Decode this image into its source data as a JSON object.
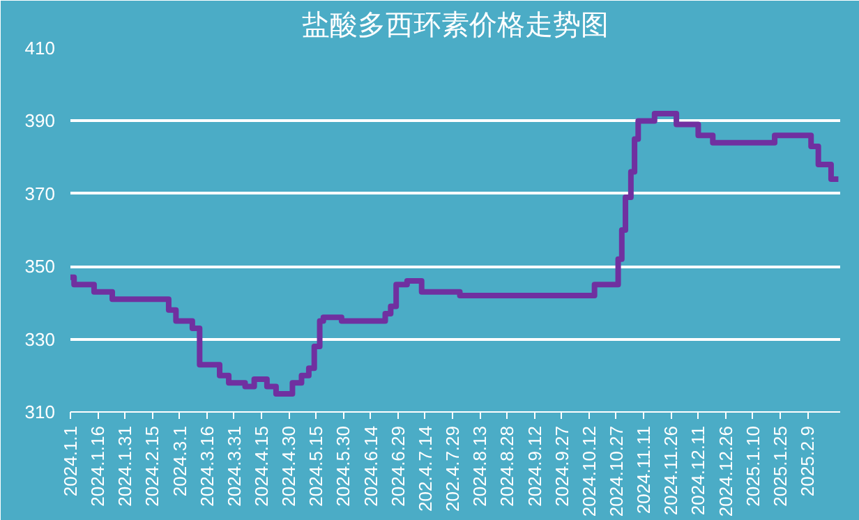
{
  "chart_data": {
    "type": "step",
    "title": "盐酸多西环素价格走势图",
    "x": [
      "2024-01-01",
      "2024-01-03",
      "2024-01-14",
      "2024-01-24",
      "2024-02-24",
      "2024-02-28",
      "2024-03-08",
      "2024-03-12",
      "2024-03-23",
      "2024-03-28",
      "2024-04-06",
      "2024-04-11",
      "2024-04-18",
      "2024-04-23",
      "2024-05-02",
      "2024-05-07",
      "2024-05-11",
      "2024-05-14",
      "2024-05-17",
      "2024-05-19",
      "2024-05-29",
      "2024-06-22",
      "2024-06-25",
      "2024-06-28",
      "2024-07-04",
      "2024-07-12",
      "2024-08-02",
      "2024-10-15",
      "2024-10-28",
      "2024-10-30",
      "2024-11-01",
      "2024-11-04",
      "2024-11-06",
      "2024-11-08",
      "2024-11-17",
      "2024-11-29",
      "2024-12-11",
      "2024-12-19",
      "2025-01-22",
      "2025-02-11",
      "2025-02-15",
      "2025-02-22",
      "2025-02-26"
    ],
    "series": [
      {
        "color": "#7030a0",
        "values": [
          347,
          345,
          343,
          341,
          338,
          335,
          333,
          323,
          320,
          318,
          317,
          319,
          317,
          315,
          318,
          320,
          322,
          328,
          335,
          336,
          335,
          337,
          339,
          345,
          346,
          343,
          342,
          345,
          352,
          360,
          369,
          376,
          385,
          390,
          392,
          389,
          386,
          384,
          386,
          383,
          378,
          374,
          374
        ]
      }
    ],
    "xlim": [
      "2024-01-01",
      "2025-02-27"
    ],
    "xticks": [
      {
        "value": "2024-01-01",
        "label": "2024.1.1"
      },
      {
        "value": "2024-01-16",
        "label": "2024.1.16"
      },
      {
        "value": "2024-01-31",
        "label": "2024.1.31"
      },
      {
        "value": "2024-02-15",
        "label": "2024.2.15"
      },
      {
        "value": "2024-03-01",
        "label": "2024.3.1"
      },
      {
        "value": "2024-03-16",
        "label": "2024.3.16"
      },
      {
        "value": "2024-03-31",
        "label": "2024.3.31"
      },
      {
        "value": "2024-04-15",
        "label": "2024.4.15"
      },
      {
        "value": "2024-04-30",
        "label": "2024.4.30"
      },
      {
        "value": "2024-05-15",
        "label": "2024.5.15"
      },
      {
        "value": "2024-05-30",
        "label": "2024.5.30"
      },
      {
        "value": "2024-06-14",
        "label": "2024.6.14"
      },
      {
        "value": "2024-06-29",
        "label": "2024.6.29"
      },
      {
        "value": "2024-07-14",
        "label": "202.4.7.14"
      },
      {
        "value": "2024-07-29",
        "label": "202.4.7.29"
      },
      {
        "value": "2024-08-13",
        "label": "2024.8.13"
      },
      {
        "value": "2024-08-28",
        "label": "2024.8.28"
      },
      {
        "value": "2024-09-12",
        "label": "2024.9.12"
      },
      {
        "value": "2024-09-27",
        "label": "2024.9.27"
      },
      {
        "value": "2024-10-12",
        "label": "2024.10.12"
      },
      {
        "value": "2024-10-27",
        "label": "2024.10.27"
      },
      {
        "value": "2024-11-11",
        "label": "2024.11.11"
      },
      {
        "value": "2024-11-26",
        "label": "2024.11.26"
      },
      {
        "value": "2024-12-11",
        "label": "2024.12.11"
      },
      {
        "value": "2024-12-26",
        "label": "2024.12.26"
      },
      {
        "value": "2025-01-10",
        "label": "2025.1.10"
      },
      {
        "value": "2025-01-25",
        "label": "2025.1.25"
      },
      {
        "value": "2025-02-09",
        "label": "2025.2.9"
      }
    ],
    "ylim": [
      310,
      410
    ],
    "yticks": [
      310,
      330,
      350,
      370,
      390,
      410
    ],
    "grid": "y",
    "line_style": "solid"
  }
}
